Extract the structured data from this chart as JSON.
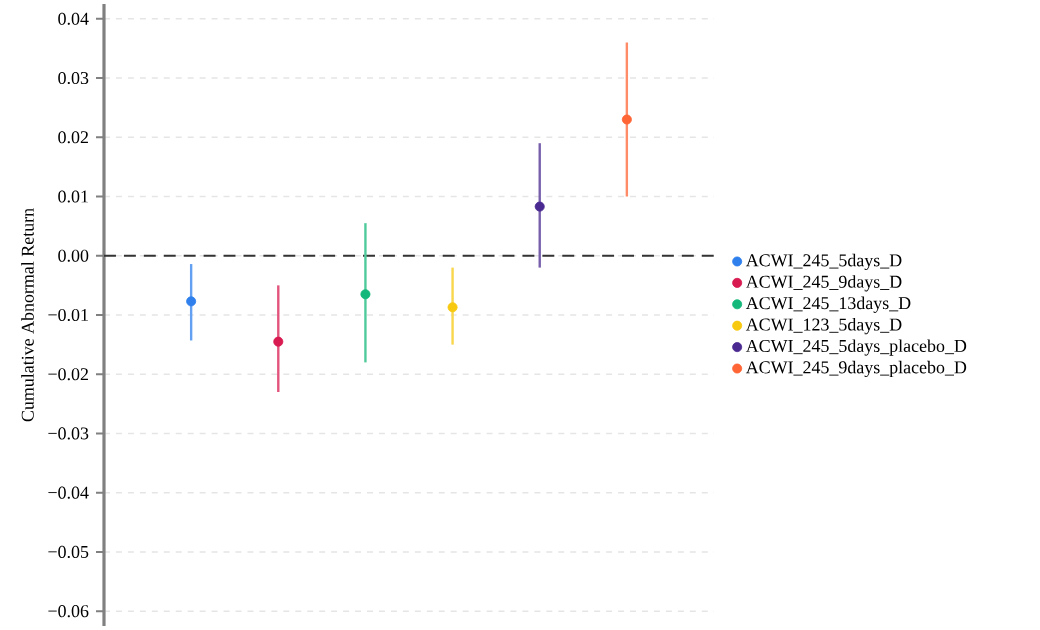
{
  "chart_data": {
    "type": "scatter",
    "ylabel": "Cumulative Abnormal Return",
    "categories": [
      null,
      null,
      null,
      null,
      null,
      null
    ],
    "series": [
      {
        "name": "ACWI_245_5days_D",
        "color": "#2f80ed",
        "values": [
          -0.0077,
          null,
          null,
          null,
          null,
          null
        ],
        "errors": [
          [
            -0.0143,
            -0.0014
          ],
          null,
          null,
          null,
          null,
          null
        ]
      },
      {
        "name": "ACWI_245_9days_D",
        "color": "#d81b50",
        "values": [
          null,
          -0.0145,
          null,
          null,
          null,
          null
        ],
        "errors": [
          null,
          [
            -0.023,
            -0.005
          ],
          null,
          null,
          null,
          null
        ]
      },
      {
        "name": "ACWI_245_13days_D",
        "color": "#14b87a",
        "values": [
          null,
          null,
          -0.0065,
          null,
          null,
          null
        ],
        "errors": [
          null,
          null,
          [
            -0.018,
            0.0055
          ],
          null,
          null,
          null
        ]
      },
      {
        "name": "ACWI_123_5days_D",
        "color": "#f7c911",
        "values": [
          null,
          null,
          null,
          -0.0087,
          null,
          null
        ],
        "errors": [
          null,
          null,
          null,
          [
            -0.015,
            -0.002
          ],
          null,
          null
        ]
      },
      {
        "name": "ACWI_245_5days_placebo_D",
        "color": "#4a2a90",
        "values": [
          null,
          null,
          null,
          null,
          0.0083,
          null
        ],
        "errors": [
          null,
          null,
          null,
          null,
          [
            -0.002,
            0.019
          ],
          null
        ]
      },
      {
        "name": "ACWI_245_9days_placebo_D",
        "color": "#ff6535",
        "values": [
          null,
          null,
          null,
          null,
          null,
          0.023
        ],
        "errors": [
          null,
          null,
          null,
          null,
          null,
          [
            0.01,
            0.036
          ]
        ]
      }
    ],
    "ylim": [
      -0.0625,
      0.0425
    ],
    "yticks": [
      {
        "value": -0.06,
        "label": "−0.06"
      },
      {
        "value": -0.05,
        "label": "−0.05"
      },
      {
        "value": -0.04,
        "label": "−0.04"
      },
      {
        "value": -0.03,
        "label": "−0.03"
      },
      {
        "value": -0.02,
        "label": "−0.02"
      },
      {
        "value": -0.01,
        "label": "−0.01"
      },
      {
        "value": 0.0,
        "label": "0.00"
      },
      {
        "value": 0.01,
        "label": "0.01"
      },
      {
        "value": 0.02,
        "label": "0.02"
      },
      {
        "value": 0.03,
        "label": "0.03"
      },
      {
        "value": 0.04,
        "label": "0.04"
      }
    ],
    "ref_lines": [
      {
        "axis": "y",
        "value": 0,
        "color": "#333333",
        "line_style": "dashed"
      }
    ],
    "grid": "y",
    "legend": "right",
    "marker": "circle"
  }
}
